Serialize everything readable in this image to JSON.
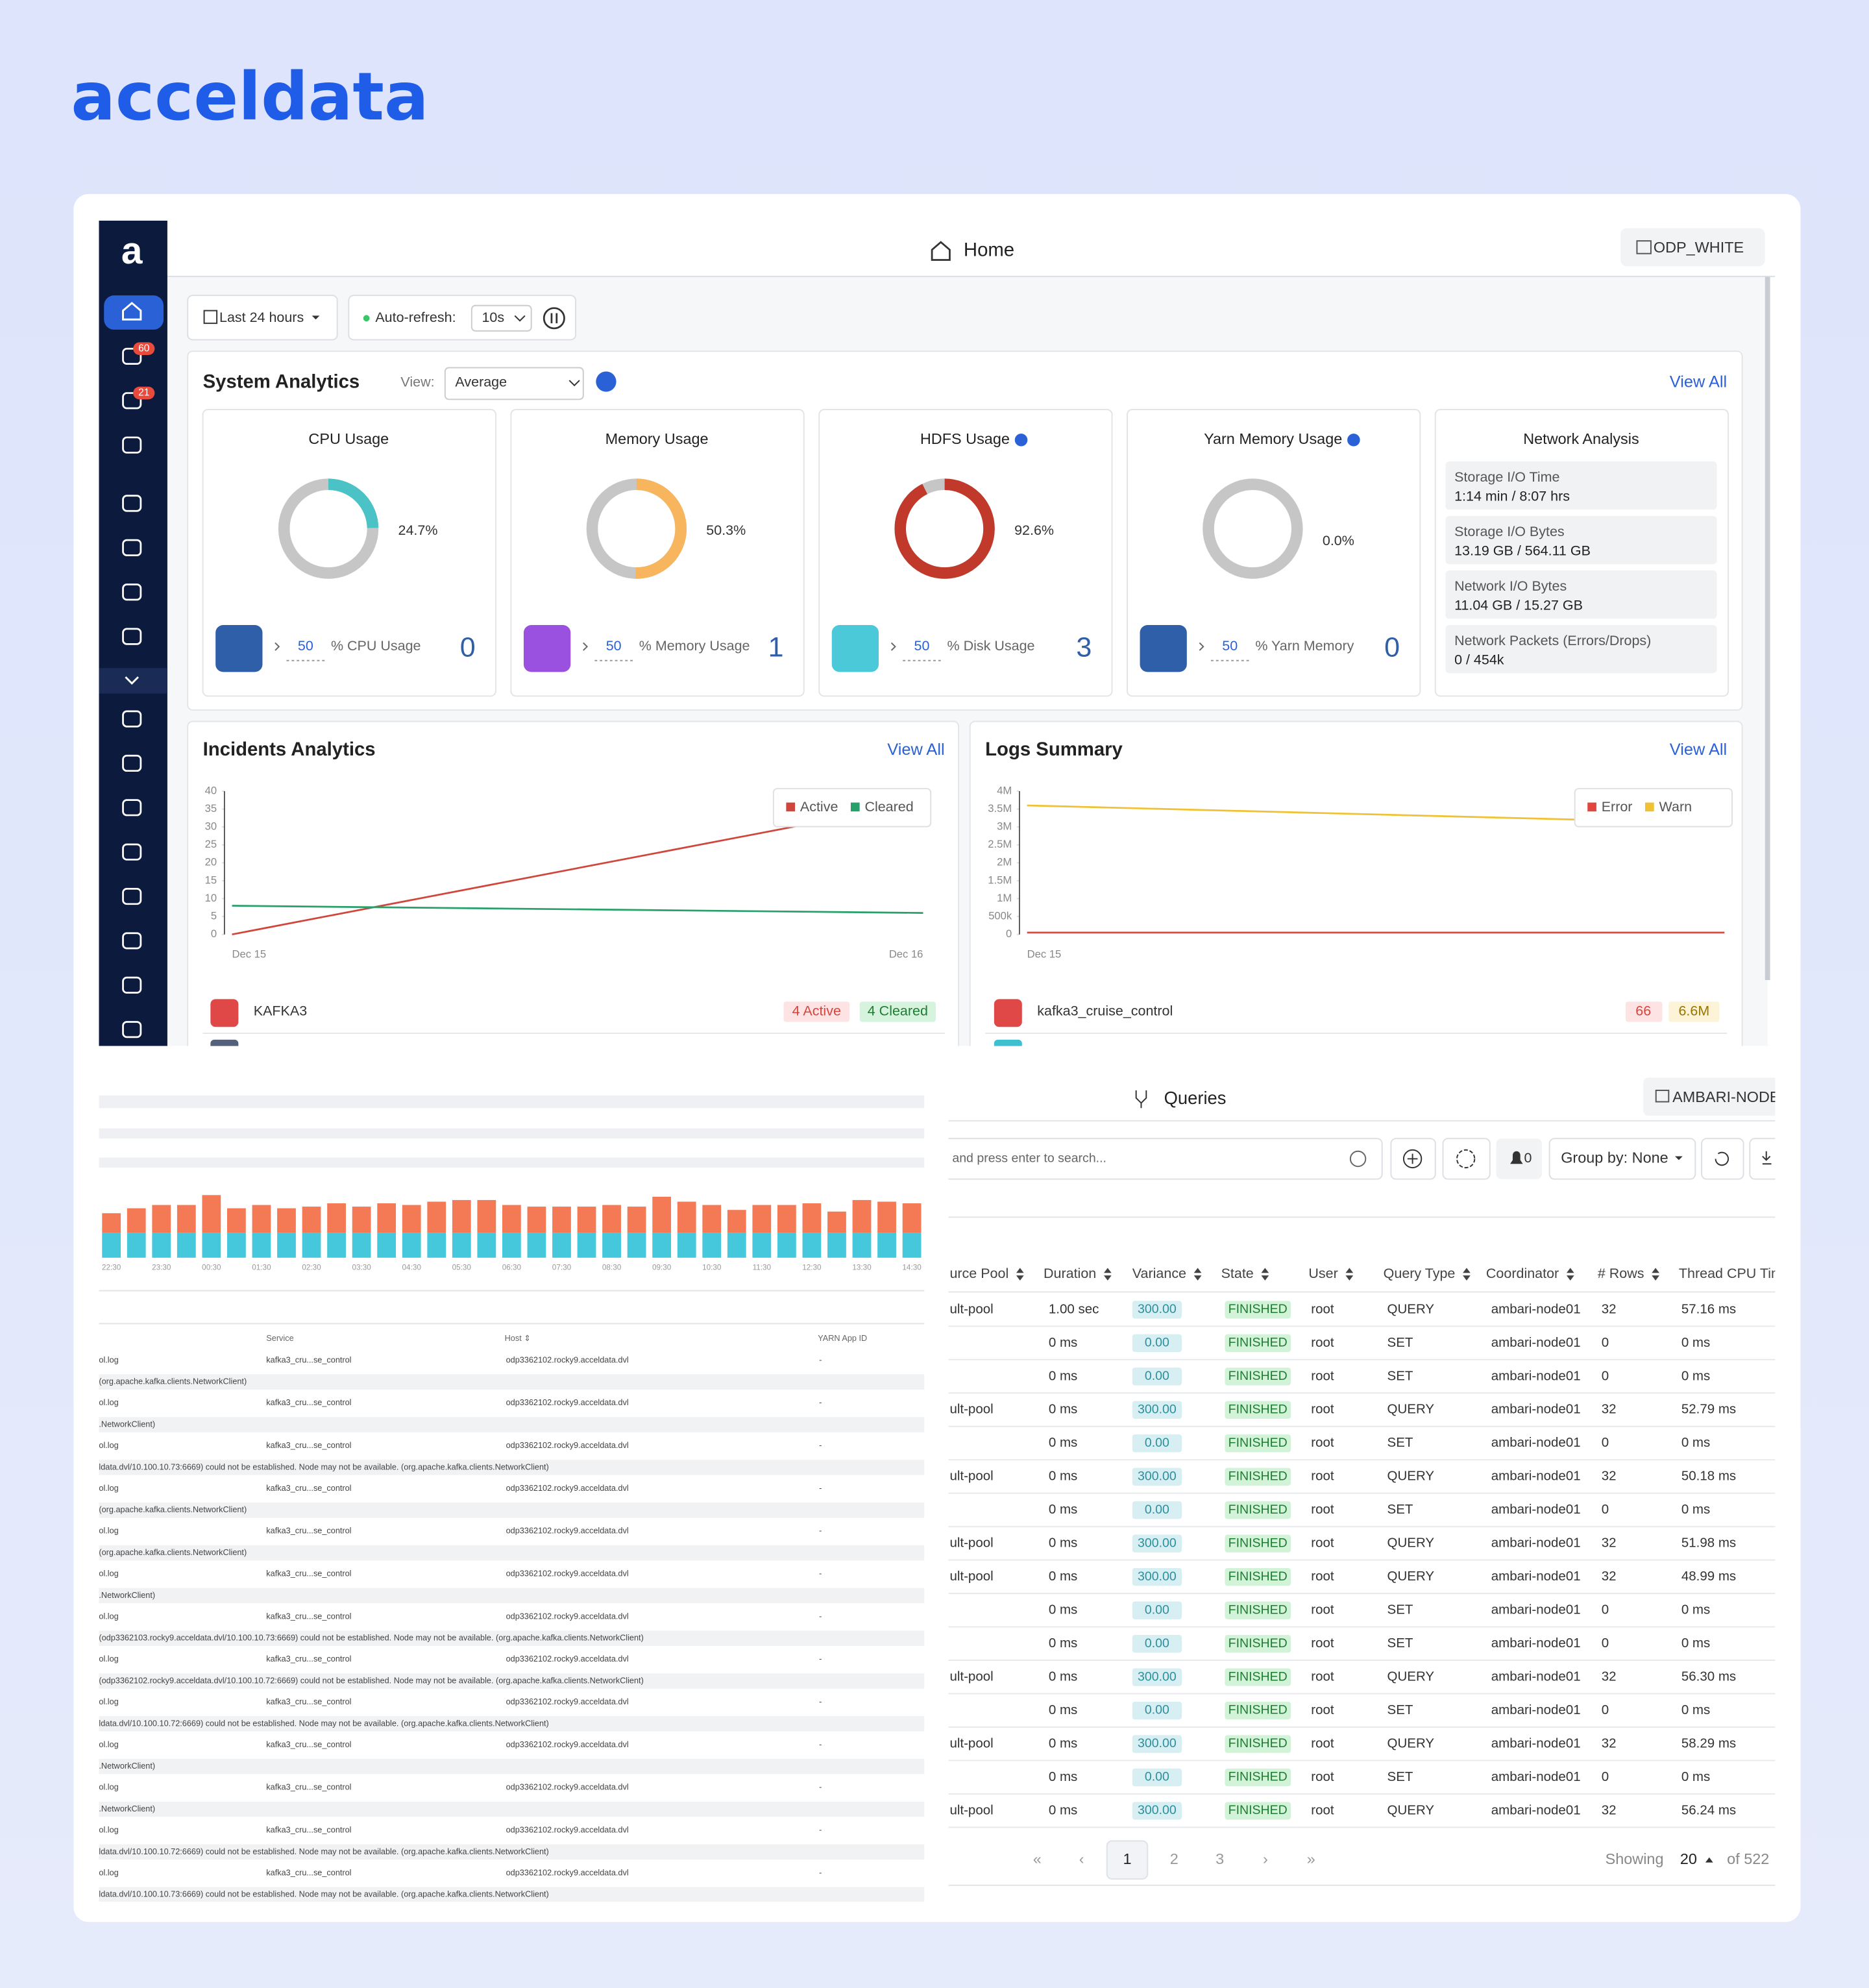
{
  "brand": "acceldata",
  "header": {
    "title": "Home",
    "cluster": "ODP_WHITE"
  },
  "sidebar": {
    "badges": [
      "60",
      "21"
    ]
  },
  "controls": {
    "time_range": "Last 24 hours",
    "auto_refresh_label": "Auto-refresh:",
    "interval": "10s"
  },
  "system_analytics": {
    "title": "System Analytics",
    "view_label": "View:",
    "view": "Average",
    "view_all": "View All",
    "cards": [
      {
        "threshold": 50,
        "metric": "% CPU Usage",
        "count": 0
      },
      {
        "threshold": 50,
        "metric": "% Memory Usage",
        "count": 1
      },
      {
        "threshold": 50,
        "metric": "% Disk Usage",
        "count": 3
      },
      {
        "threshold": 50,
        "metric": "% Yarn Memory",
        "count": 0
      }
    ],
    "network": {
      "title": "Network Analysis",
      "items": [
        {
          "label": "Storage I/O Time",
          "value": "1:14 min / 8:07 hrs"
        },
        {
          "label": "Storage I/O Bytes",
          "value": "13.19 GB / 564.11 GB"
        },
        {
          "label": "Network I/O Bytes",
          "value": "11.04 GB / 15.27 GB"
        },
        {
          "label": "Network Packets (Errors/Drops)",
          "value": "0 / 454k"
        }
      ]
    }
  },
  "chart_data": [
    {
      "type": "donut",
      "title": "CPU Usage",
      "values": [
        24.7
      ],
      "value_labels": [
        "24.7%"
      ],
      "color": "#4bc3c6"
    },
    {
      "type": "donut",
      "title": "Memory Usage",
      "values": [
        50.3
      ],
      "value_labels": [
        "50.3%"
      ],
      "color": "#f7b55e"
    },
    {
      "type": "donut",
      "title": "HDFS Usage",
      "values": [
        92.6
      ],
      "value_labels": [
        "92.6%"
      ],
      "color": "#c0392b"
    },
    {
      "type": "donut",
      "title": "Yarn Memory Usage",
      "values": [
        0.0
      ],
      "value_labels": [
        "0.0%"
      ],
      "color": "#4bc3c6"
    },
    {
      "type": "line",
      "title": "Incidents Analytics",
      "categories": [
        "Dec 15",
        "Dec 16"
      ],
      "series": [
        {
          "name": "Active",
          "color": "#d0463c",
          "values": [
            0,
            37
          ]
        },
        {
          "name": "Cleared",
          "color": "#27a06a",
          "values": [
            8,
            6
          ]
        }
      ],
      "ylim": [
        0,
        40
      ],
      "yticks": [
        0,
        5,
        10,
        15,
        20,
        25,
        30,
        35,
        40
      ],
      "legend": "top-right"
    },
    {
      "type": "line",
      "title": "Logs Summary",
      "categories": [
        "Dec 15",
        null
      ],
      "series": [
        {
          "name": "Error",
          "color": "#e0463d",
          "values": [
            50000,
            50000
          ]
        },
        {
          "name": "Warn",
          "color": "#f0c132",
          "values": [
            3600000,
            3100000
          ]
        }
      ],
      "ylim": [
        0,
        4000000
      ],
      "yticks": [
        0,
        {
          "value": 500000,
          "label": "500k"
        },
        {
          "value": 1000000,
          "label": "1M"
        },
        {
          "value": 1500000,
          "label": "1.5M"
        },
        {
          "value": 2000000,
          "label": "2M"
        },
        {
          "value": 2500000,
          "label": "2.5M"
        },
        {
          "value": 3000000,
          "label": "3M"
        },
        {
          "value": 3500000,
          "label": "3.5M"
        },
        {
          "value": 4000000,
          "label": "4M"
        }
      ],
      "legend": "top-right"
    },
    {
      "type": "stacked_bar",
      "categories": [
        "22:30",
        null,
        "23:30",
        null,
        "00:30",
        null,
        "01:30",
        null,
        "02:30",
        null,
        "03:30",
        null,
        "04:30",
        null,
        "05:30",
        null,
        "06:30",
        null,
        "07:30",
        null,
        "08:30",
        null,
        "09:30",
        null,
        "10:30",
        null,
        "11:30",
        null,
        "12:30",
        null,
        "13:30",
        null,
        "14:30"
      ],
      "series": [
        {
          "color": "#45c7dc",
          "values": [
            15,
            15,
            15,
            15,
            15,
            15,
            15,
            15,
            15,
            15,
            15,
            15,
            15,
            15,
            15,
            15,
            15,
            15,
            15,
            15,
            15,
            15,
            15,
            15,
            15,
            15,
            15,
            15,
            15,
            15,
            15,
            15,
            15
          ]
        },
        {
          "color": "#f47a55",
          "values": [
            12,
            15,
            17,
            17,
            23,
            15,
            17,
            15,
            16,
            18,
            16,
            18,
            17,
            19,
            20,
            20,
            17,
            16,
            16,
            16,
            17,
            16,
            22,
            19,
            17,
            14,
            17,
            17,
            18,
            13,
            20,
            19,
            18
          ]
        }
      ]
    }
  ],
  "incidents": {
    "view_all": "View All",
    "items": [
      {
        "name": "KAFKA3",
        "active": "4 Active",
        "cleared": "4 Cleared"
      }
    ]
  },
  "logs": {
    "view_all": "View All",
    "items": [
      {
        "name": "kafka3_cruise_control",
        "error": "66",
        "warn": "6.6M"
      }
    ]
  },
  "log_table": {
    "headers": [
      "Service",
      "Host ⇕",
      "YARN App ID"
    ],
    "rows": [
      {
        "cells": [
          "ol.log",
          "kafka3_cru...se_control",
          "odp3362102.rocky9.acceldata.dvl",
          "-"
        ],
        "message": "(org.apache.kafka.clients.NetworkClient)"
      },
      {
        "cells": [
          "ol.log",
          "kafka3_cru...se_control",
          "odp3362102.rocky9.acceldata.dvl",
          "-"
        ],
        "message": ".NetworkClient)"
      },
      {
        "cells": [
          "ol.log",
          "kafka3_cru...se_control",
          "odp3362102.rocky9.acceldata.dvl",
          "-"
        ],
        "message": "ldata.dvl/10.100.10.73:6669) could not be established. Node may not be available. (org.apache.kafka.clients.NetworkClient)"
      },
      {
        "cells": [
          "ol.log",
          "kafka3_cru...se_control",
          "odp3362102.rocky9.acceldata.dvl",
          "-"
        ],
        "message": "(org.apache.kafka.clients.NetworkClient)"
      },
      {
        "cells": [
          "ol.log",
          "kafka3_cru...se_control",
          "odp3362102.rocky9.acceldata.dvl",
          "-"
        ],
        "message": "(org.apache.kafka.clients.NetworkClient)"
      },
      {
        "cells": [
          "ol.log",
          "kafka3_cru...se_control",
          "odp3362102.rocky9.acceldata.dvl",
          "-"
        ],
        "message": ".NetworkClient)"
      },
      {
        "cells": [
          "ol.log",
          "kafka3_cru...se_control",
          "odp3362102.rocky9.acceldata.dvl",
          "-"
        ],
        "message": "(odp3362103.rocky9.acceldata.dvl/10.100.10.73:6669) could not be established. Node may not be available. (org.apache.kafka.clients.NetworkClient)"
      },
      {
        "cells": [
          "ol.log",
          "kafka3_cru...se_control",
          "odp3362102.rocky9.acceldata.dvl",
          "-"
        ],
        "message": "(odp3362102.rocky9.acceldata.dvl/10.100.10.72:6669) could not be established. Node may not be available. (org.apache.kafka.clients.NetworkClient)"
      },
      {
        "cells": [
          "ol.log",
          "kafka3_cru...se_control",
          "odp3362102.rocky9.acceldata.dvl",
          "-"
        ],
        "message": "ldata.dvl/10.100.10.72:6669) could not be established. Node may not be available. (org.apache.kafka.clients.NetworkClient)"
      },
      {
        "cells": [
          "ol.log",
          "kafka3_cru...se_control",
          "odp3362102.rocky9.acceldata.dvl",
          "-"
        ],
        "message": ".NetworkClient)"
      },
      {
        "cells": [
          "ol.log",
          "kafka3_cru...se_control",
          "odp3362102.rocky9.acceldata.dvl",
          "-"
        ],
        "message": ".NetworkClient)"
      },
      {
        "cells": [
          "ol.log",
          "kafka3_cru...se_control",
          "odp3362102.rocky9.acceldata.dvl",
          "-"
        ],
        "message": "ldata.dvl/10.100.10.72:6669) could not be established. Node may not be available. (org.apache.kafka.clients.NetworkClient)"
      },
      {
        "cells": [
          "ol.log",
          "kafka3_cru...se_control",
          "odp3362102.rocky9.acceldata.dvl",
          "-"
        ],
        "message": "ldata.dvl/10.100.10.73:6669) could not be established. Node may not be available. (org.apache.kafka.clients.NetworkClient)"
      }
    ]
  },
  "queries": {
    "title": "Queries",
    "node": "AMBARI-NODE",
    "search_placeholder": "and press enter to search...",
    "alerts": "0",
    "group_by": "Group by: None",
    "columns": [
      "urce Pool",
      "Duration",
      "Variance",
      "State",
      "User",
      "Query Type",
      "Coordinator",
      "# Rows",
      "Thread CPU Tim"
    ],
    "rows": [
      [
        "ult-pool",
        "1.00 sec",
        "300.00",
        "FINISHED",
        "root",
        "QUERY",
        "ambari-node01",
        32,
        "57.16 ms"
      ],
      [
        null,
        "0 ms",
        "0.00",
        "FINISHED",
        "root",
        "SET",
        "ambari-node01",
        0,
        "0 ms"
      ],
      [
        null,
        "0 ms",
        "0.00",
        "FINISHED",
        "root",
        "SET",
        "ambari-node01",
        0,
        "0 ms"
      ],
      [
        "ult-pool",
        "0 ms",
        "300.00",
        "FINISHED",
        "root",
        "QUERY",
        "ambari-node01",
        32,
        "52.79 ms"
      ],
      [
        null,
        "0 ms",
        "0.00",
        "FINISHED",
        "root",
        "SET",
        "ambari-node01",
        0,
        "0 ms"
      ],
      [
        "ult-pool",
        "0 ms",
        "300.00",
        "FINISHED",
        "root",
        "QUERY",
        "ambari-node01",
        32,
        "50.18 ms"
      ],
      [
        null,
        "0 ms",
        "0.00",
        "FINISHED",
        "root",
        "SET",
        "ambari-node01",
        0,
        "0 ms"
      ],
      [
        "ult-pool",
        "0 ms",
        "300.00",
        "FINISHED",
        "root",
        "QUERY",
        "ambari-node01",
        32,
        "51.98 ms"
      ],
      [
        "ult-pool",
        "0 ms",
        "300.00",
        "FINISHED",
        "root",
        "QUERY",
        "ambari-node01",
        32,
        "48.99 ms"
      ],
      [
        null,
        "0 ms",
        "0.00",
        "FINISHED",
        "root",
        "SET",
        "ambari-node01",
        0,
        "0 ms"
      ],
      [
        null,
        "0 ms",
        "0.00",
        "FINISHED",
        "root",
        "SET",
        "ambari-node01",
        0,
        "0 ms"
      ],
      [
        "ult-pool",
        "0 ms",
        "300.00",
        "FINISHED",
        "root",
        "QUERY",
        "ambari-node01",
        32,
        "56.30 ms"
      ],
      [
        null,
        "0 ms",
        "0.00",
        "FINISHED",
        "root",
        "SET",
        "ambari-node01",
        0,
        "0 ms"
      ],
      [
        "ult-pool",
        "0 ms",
        "300.00",
        "FINISHED",
        "root",
        "QUERY",
        "ambari-node01",
        32,
        "58.29 ms"
      ],
      [
        null,
        "0 ms",
        "0.00",
        "FINISHED",
        "root",
        "SET",
        "ambari-node01",
        0,
        "0 ms"
      ],
      [
        "ult-pool",
        "0 ms",
        "300.00",
        "FINISHED",
        "root",
        "QUERY",
        "ambari-node01",
        32,
        "56.24 ms"
      ]
    ],
    "pagination": {
      "pages": [
        "«",
        "‹",
        "1",
        "2",
        "3",
        "›",
        "»"
      ],
      "current": "1",
      "showing": "Showing",
      "page_size": "20",
      "total": "of 522"
    }
  }
}
